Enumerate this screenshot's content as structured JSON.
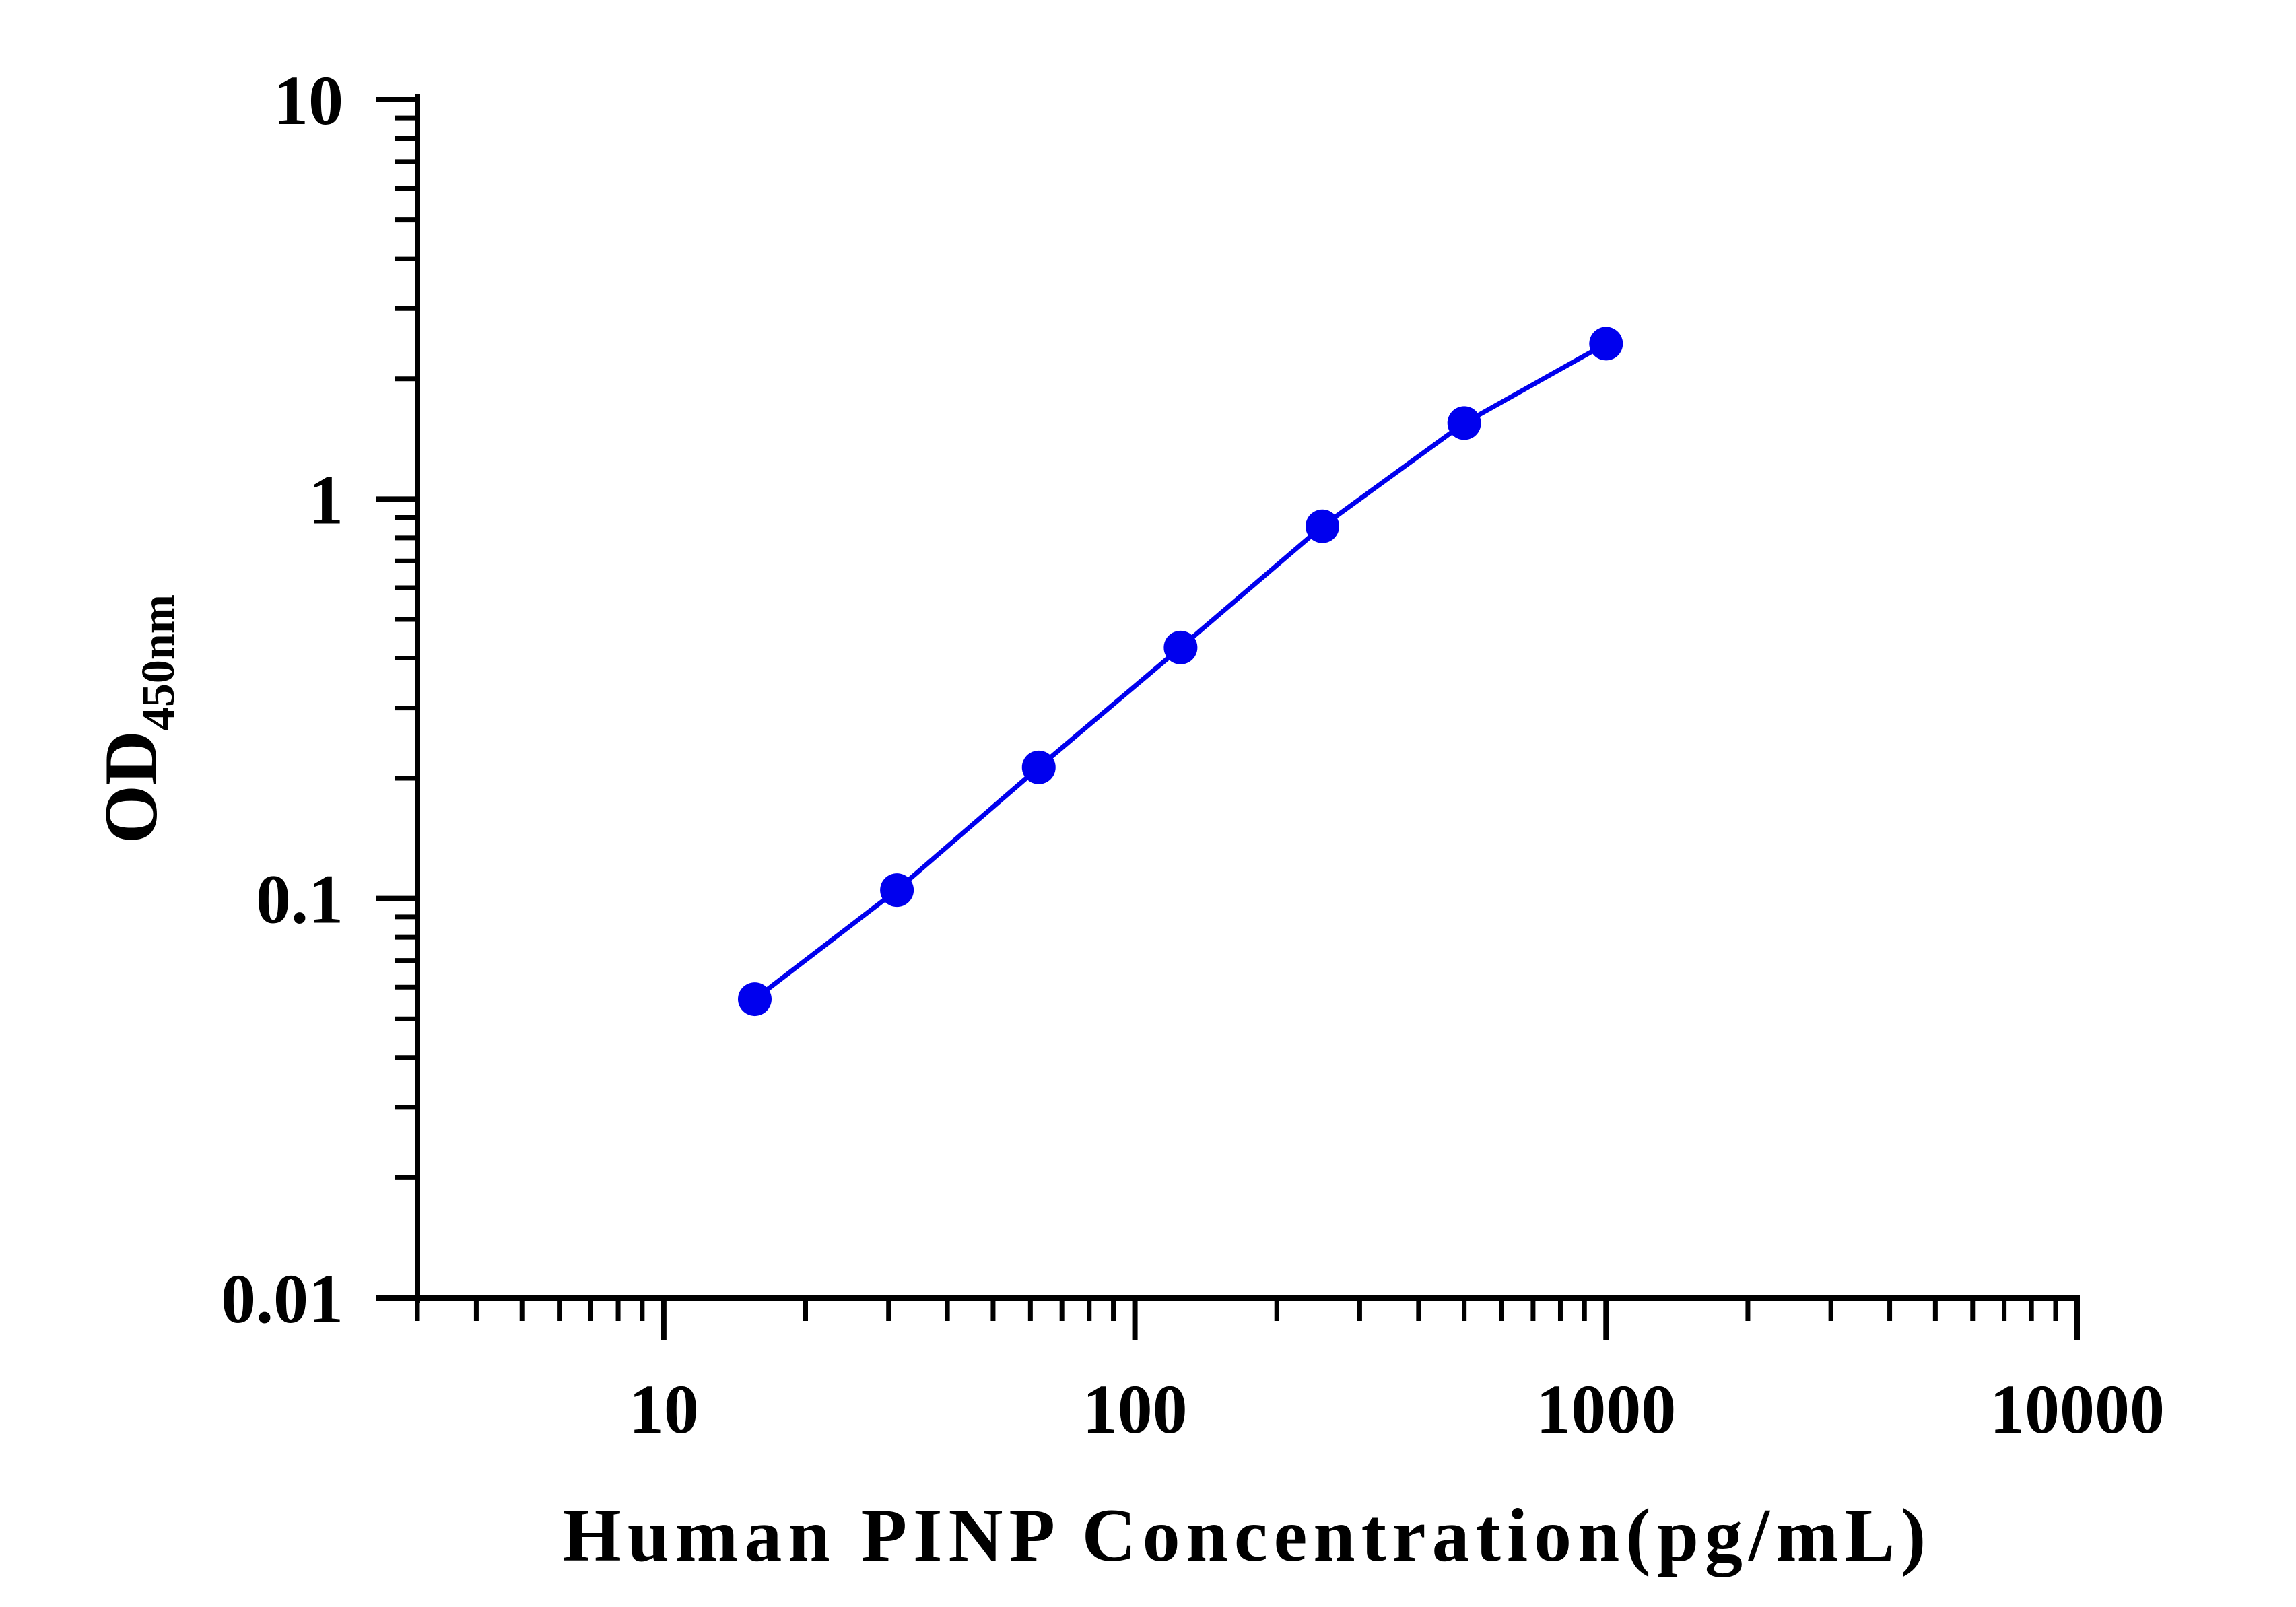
{
  "chart_data": {
    "type": "line",
    "title": "",
    "xlabel": "Human PINP Concentration(pg/mL)",
    "ylabel": "OD",
    "ylabel_subscript": "450nm",
    "xscale": "log",
    "yscale": "log",
    "xlim": [
      3,
      10000
    ],
    "ylim": [
      0.01,
      10
    ],
    "x_ticks": [
      10,
      100,
      1000,
      10000
    ],
    "x_tick_labels": [
      "10",
      "100",
      "1000",
      "10000"
    ],
    "y_ticks": [
      0.01,
      0.1,
      1,
      10
    ],
    "y_tick_labels": [
      "0.01",
      "0.1",
      "1",
      "10"
    ],
    "grid": false,
    "legend": "none",
    "series": [
      {
        "color": "#0000ee",
        "marker": "circle",
        "x": [
          15.6,
          31.25,
          62.5,
          125,
          250,
          500,
          1000
        ],
        "y": [
          0.056,
          0.105,
          0.213,
          0.425,
          0.855,
          1.55,
          2.45
        ]
      }
    ]
  }
}
